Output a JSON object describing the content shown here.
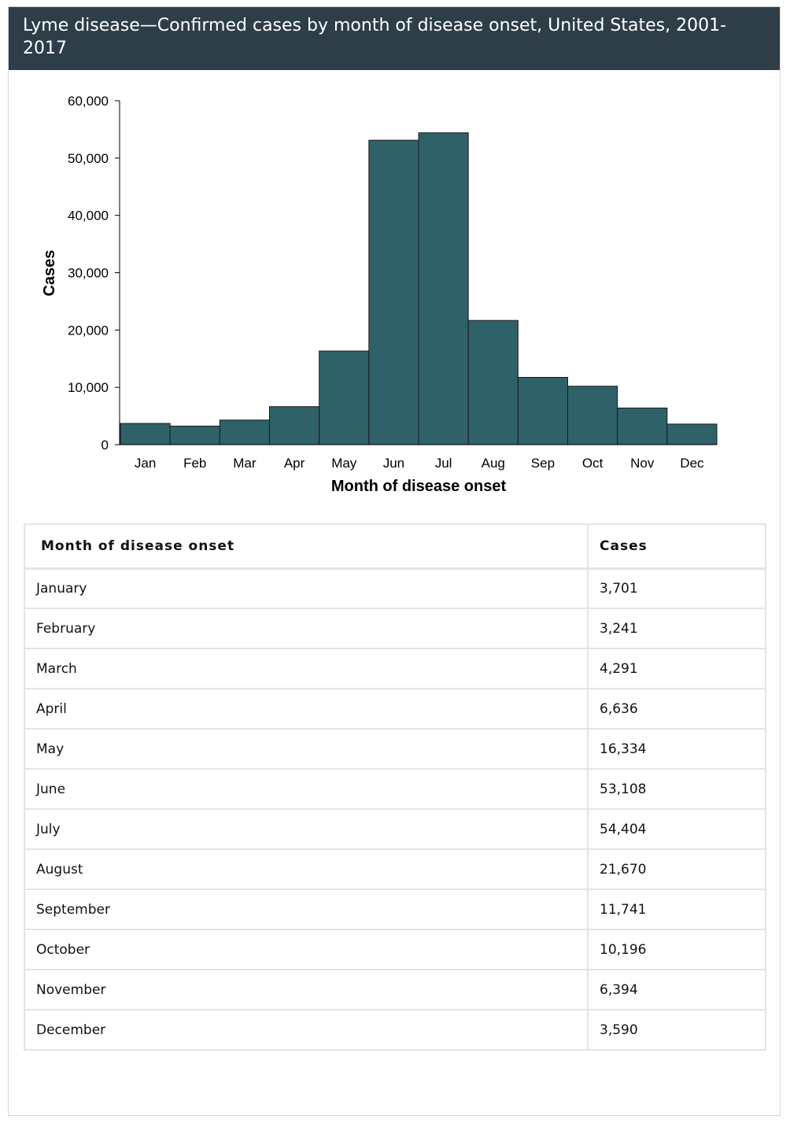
{
  "title": "Lyme disease—Confirmed cases by month of disease onset, United States, 2001-2017",
  "colors": {
    "header_bg": "#2e3e48",
    "bar_fill": "#2f6169",
    "bar_stroke": "#1a1a1a"
  },
  "chart_data": {
    "type": "bar",
    "categories": [
      "Jan",
      "Feb",
      "Mar",
      "Apr",
      "May",
      "Jun",
      "Jul",
      "Aug",
      "Sep",
      "Oct",
      "Nov",
      "Dec"
    ],
    "values": [
      3701,
      3241,
      4291,
      6636,
      16334,
      53108,
      54404,
      21670,
      11741,
      10196,
      6394,
      3590
    ],
    "xlabel": "Month of disease onset",
    "ylabel": "Cases",
    "ylim": [
      0,
      60000
    ],
    "yticks": [
      "0",
      "10,000",
      "20,000",
      "30,000",
      "40,000",
      "50,000",
      "60,000"
    ],
    "grid": false,
    "legend": "none"
  },
  "table": {
    "headers": [
      "Month of disease onset",
      "Cases"
    ],
    "rows": [
      [
        "January",
        "3,701"
      ],
      [
        "February",
        "3,241"
      ],
      [
        "March",
        "4,291"
      ],
      [
        "April",
        "6,636"
      ],
      [
        "May",
        "16,334"
      ],
      [
        "June",
        "53,108"
      ],
      [
        "July",
        "54,404"
      ],
      [
        "August",
        "21,670"
      ],
      [
        "September",
        "11,741"
      ],
      [
        "October",
        "10,196"
      ],
      [
        "November",
        "6,394"
      ],
      [
        "December",
        "3,590"
      ]
    ]
  }
}
